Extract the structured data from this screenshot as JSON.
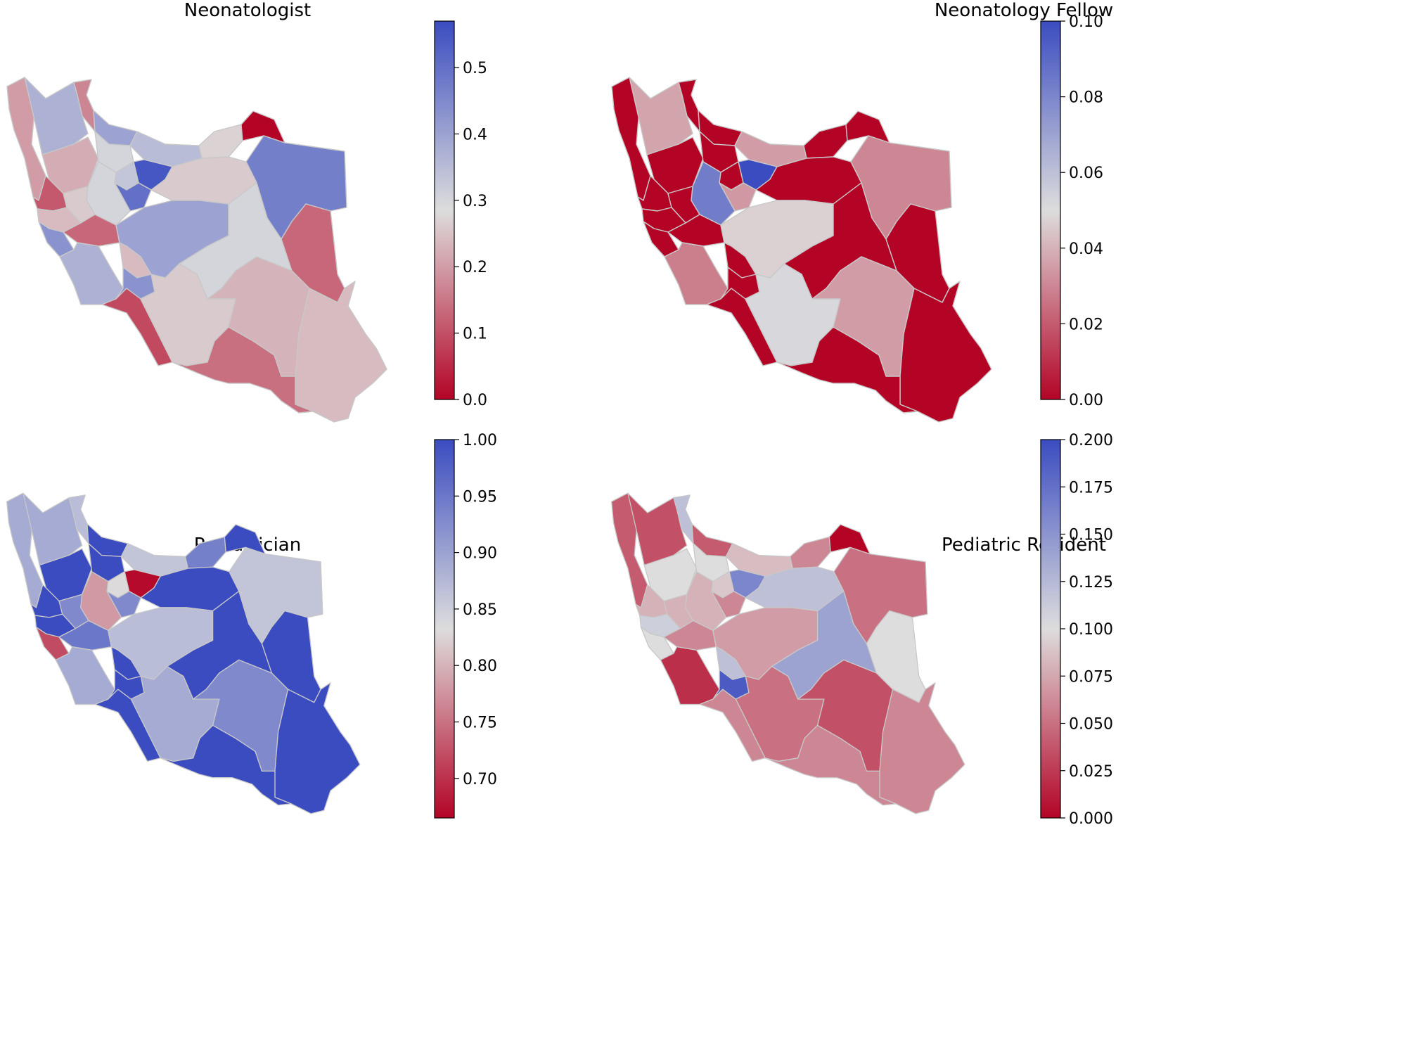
{
  "panels": [
    {
      "title": "Neonatologist",
      "colorbar": {
        "min": 0.0,
        "max": 0.57,
        "ticks": [
          {
            "value": 0.0,
            "label": "0.0"
          },
          {
            "value": 0.1,
            "label": "0.1"
          },
          {
            "value": 0.2,
            "label": "0.2"
          },
          {
            "value": 0.3,
            "label": "0.3"
          },
          {
            "value": 0.4,
            "label": "0.4"
          },
          {
            "value": 0.5,
            "label": "0.5"
          }
        ]
      },
      "provinces": [
        {
          "id": "west_azerbaijan",
          "value": 0.2
        },
        {
          "id": "east_azerbaijan",
          "value": 0.37
        },
        {
          "id": "ardabil",
          "value": 0.17
        },
        {
          "id": "gilan",
          "value": 0.4
        },
        {
          "id": "mazandaran",
          "value": 0.35
        },
        {
          "id": "golestan",
          "value": 0.27
        },
        {
          "id": "north_khorasan",
          "value": 0.0
        },
        {
          "id": "razavi_khorasan",
          "value": 0.47
        },
        {
          "id": "south_khorasan",
          "value": 0.13
        },
        {
          "id": "zanjan",
          "value": 0.22
        },
        {
          "id": "kurdistan",
          "value": 0.11
        },
        {
          "id": "qazvin",
          "value": 0.3
        },
        {
          "id": "tehran",
          "value": 0.55
        },
        {
          "id": "alborz",
          "value": 0.33
        },
        {
          "id": "qom",
          "value": 0.5
        },
        {
          "id": "semnan",
          "value": 0.26
        },
        {
          "id": "markazi",
          "value": 0.3
        },
        {
          "id": "hamadan",
          "value": 0.26
        },
        {
          "id": "kermanshah",
          "value": 0.24
        },
        {
          "id": "ilam",
          "value": 0.43
        },
        {
          "id": "lorestan",
          "value": 0.13
        },
        {
          "id": "isfahan",
          "value": 0.4
        },
        {
          "id": "yazd",
          "value": 0.3
        },
        {
          "id": "khuzestan",
          "value": 0.37
        },
        {
          "id": "chaharmahal",
          "value": 0.24
        },
        {
          "id": "kohgiluyeh",
          "value": 0.43
        },
        {
          "id": "bushehr",
          "value": 0.09
        },
        {
          "id": "fars",
          "value": 0.26
        },
        {
          "id": "kerman",
          "value": 0.23
        },
        {
          "id": "sistan_baluchestan",
          "value": 0.24
        },
        {
          "id": "hormozgan",
          "value": 0.14
        }
      ]
    },
    {
      "title": "Neonatology Fellow",
      "colorbar": {
        "min": 0.0,
        "max": 0.1,
        "ticks": [
          {
            "value": 0.0,
            "label": "0.00"
          },
          {
            "value": 0.02,
            "label": "0.02"
          },
          {
            "value": 0.04,
            "label": "0.04"
          },
          {
            "value": 0.06,
            "label": "0.06"
          },
          {
            "value": 0.08,
            "label": "0.08"
          },
          {
            "value": 0.1,
            "label": "0.10"
          }
        ]
      },
      "provinces": [
        {
          "id": "west_azerbaijan",
          "value": 0.0
        },
        {
          "id": "east_azerbaijan",
          "value": 0.037
        },
        {
          "id": "ardabil",
          "value": 0.0
        },
        {
          "id": "gilan",
          "value": 0.0
        },
        {
          "id": "mazandaran",
          "value": 0.035
        },
        {
          "id": "golestan",
          "value": 0.0
        },
        {
          "id": "north_khorasan",
          "value": 0.0
        },
        {
          "id": "razavi_khorasan",
          "value": 0.03
        },
        {
          "id": "south_khorasan",
          "value": 0.0
        },
        {
          "id": "zanjan",
          "value": 0.0
        },
        {
          "id": "kurdistan",
          "value": 0.0
        },
        {
          "id": "qazvin",
          "value": 0.0
        },
        {
          "id": "tehran",
          "value": 0.1
        },
        {
          "id": "alborz",
          "value": 0.0
        },
        {
          "id": "qom",
          "value": 0.034
        },
        {
          "id": "semnan",
          "value": 0.0
        },
        {
          "id": "markazi",
          "value": 0.083
        },
        {
          "id": "hamadan",
          "value": 0.0
        },
        {
          "id": "kermanshah",
          "value": 0.0
        },
        {
          "id": "ilam",
          "value": 0.0
        },
        {
          "id": "lorestan",
          "value": 0.0
        },
        {
          "id": "isfahan",
          "value": 0.047
        },
        {
          "id": "yazd",
          "value": 0.0
        },
        {
          "id": "khuzestan",
          "value": 0.028
        },
        {
          "id": "chaharmahal",
          "value": 0.0
        },
        {
          "id": "kohgiluyeh",
          "value": 0.0
        },
        {
          "id": "bushehr",
          "value": 0.0
        },
        {
          "id": "fars",
          "value": 0.052
        },
        {
          "id": "kerman",
          "value": 0.035
        },
        {
          "id": "sistan_baluchestan",
          "value": 0.0
        },
        {
          "id": "hormozgan",
          "value": 0.0
        }
      ]
    },
    {
      "title": "Pediatrician",
      "colorbar": {
        "min": 0.665,
        "max": 1.0,
        "ticks": [
          {
            "value": 0.7,
            "label": "0.70"
          },
          {
            "value": 0.75,
            "label": "0.75"
          },
          {
            "value": 0.8,
            "label": "0.80"
          },
          {
            "value": 0.85,
            "label": "0.85"
          },
          {
            "value": 0.9,
            "label": "0.90"
          },
          {
            "value": 0.95,
            "label": "0.95"
          },
          {
            "value": 1.0,
            "label": "1.00"
          }
        ]
      },
      "provinces": [
        {
          "id": "west_azerbaijan",
          "value": 0.89
        },
        {
          "id": "east_azerbaijan",
          "value": 0.89
        },
        {
          "id": "ardabil",
          "value": 0.87
        },
        {
          "id": "gilan",
          "value": 1.0
        },
        {
          "id": "mazandaran",
          "value": 0.86
        },
        {
          "id": "golestan",
          "value": 0.94
        },
        {
          "id": "north_khorasan",
          "value": 1.0
        },
        {
          "id": "razavi_khorasan",
          "value": 0.86
        },
        {
          "id": "south_khorasan",
          "value": 1.0
        },
        {
          "id": "zanjan",
          "value": 1.0
        },
        {
          "id": "kurdistan",
          "value": 1.0
        },
        {
          "id": "qazvin",
          "value": 1.0
        },
        {
          "id": "tehran",
          "value": 0.67
        },
        {
          "id": "alborz",
          "value": 0.83
        },
        {
          "id": "qom",
          "value": 0.93
        },
        {
          "id": "semnan",
          "value": 1.0
        },
        {
          "id": "markazi",
          "value": 0.78
        },
        {
          "id": "hamadan",
          "value": 0.93
        },
        {
          "id": "kermanshah",
          "value": 1.0
        },
        {
          "id": "ilam",
          "value": 0.72
        },
        {
          "id": "lorestan",
          "value": 0.95
        },
        {
          "id": "isfahan",
          "value": 0.87
        },
        {
          "id": "yazd",
          "value": 1.0
        },
        {
          "id": "khuzestan",
          "value": 0.89
        },
        {
          "id": "chaharmahal",
          "value": 1.0
        },
        {
          "id": "kohgiluyeh",
          "value": 1.0
        },
        {
          "id": "bushehr",
          "value": 1.0
        },
        {
          "id": "fars",
          "value": 0.89
        },
        {
          "id": "kerman",
          "value": 0.93
        },
        {
          "id": "sistan_baluchestan",
          "value": 1.0
        },
        {
          "id": "hormozgan",
          "value": 1.0
        }
      ]
    },
    {
      "title": "Pediatric Resident",
      "colorbar": {
        "min": 0.0,
        "max": 0.2,
        "ticks": [
          {
            "value": 0.0,
            "label": "0.000"
          },
          {
            "value": 0.025,
            "label": "0.025"
          },
          {
            "value": 0.05,
            "label": "0.050"
          },
          {
            "value": 0.075,
            "label": "0.075"
          },
          {
            "value": 0.1,
            "label": "0.100"
          },
          {
            "value": 0.125,
            "label": "0.125"
          },
          {
            "value": 0.15,
            "label": "0.150"
          },
          {
            "value": 0.175,
            "label": "0.175"
          },
          {
            "value": 0.2,
            "label": "0.200"
          }
        ]
      },
      "provinces": [
        {
          "id": "west_azerbaijan",
          "value": 0.04
        },
        {
          "id": "east_azerbaijan",
          "value": 0.035
        },
        {
          "id": "ardabil",
          "value": 0.12
        },
        {
          "id": "gilan",
          "value": 0.04
        },
        {
          "id": "mazandaran",
          "value": 0.085
        },
        {
          "id": "golestan",
          "value": 0.06
        },
        {
          "id": "north_khorasan",
          "value": 0.0
        },
        {
          "id": "razavi_khorasan",
          "value": 0.05
        },
        {
          "id": "south_khorasan",
          "value": 0.1
        },
        {
          "id": "zanjan",
          "value": 0.1
        },
        {
          "id": "kurdistan",
          "value": 0.08
        },
        {
          "id": "qazvin",
          "value": 0.1
        },
        {
          "id": "tehran",
          "value": 0.16
        },
        {
          "id": "alborz",
          "value": 0.09
        },
        {
          "id": "qom",
          "value": 0.06
        },
        {
          "id": "semnan",
          "value": 0.12
        },
        {
          "id": "markazi",
          "value": 0.08
        },
        {
          "id": "hamadan",
          "value": 0.08
        },
        {
          "id": "kermanshah",
          "value": 0.11
        },
        {
          "id": "ilam",
          "value": 0.1
        },
        {
          "id": "lorestan",
          "value": 0.06
        },
        {
          "id": "isfahan",
          "value": 0.07
        },
        {
          "id": "yazd",
          "value": 0.14
        },
        {
          "id": "khuzestan",
          "value": 0.02
        },
        {
          "id": "chaharmahal",
          "value": 0.12
        },
        {
          "id": "kohgiluyeh",
          "value": 0.19
        },
        {
          "id": "bushehr",
          "value": 0.06
        },
        {
          "id": "fars",
          "value": 0.05
        },
        {
          "id": "kerman",
          "value": 0.035
        },
        {
          "id": "sistan_baluchestan",
          "value": 0.06
        },
        {
          "id": "hormozgan",
          "value": 0.06
        }
      ]
    }
  ],
  "colormap": {
    "name": "coolwarm_r",
    "low_color": "#b40426",
    "mid_color": "#dddddd",
    "high_color": "#3b4cc0"
  },
  "border_color": "#c8c8c8"
}
